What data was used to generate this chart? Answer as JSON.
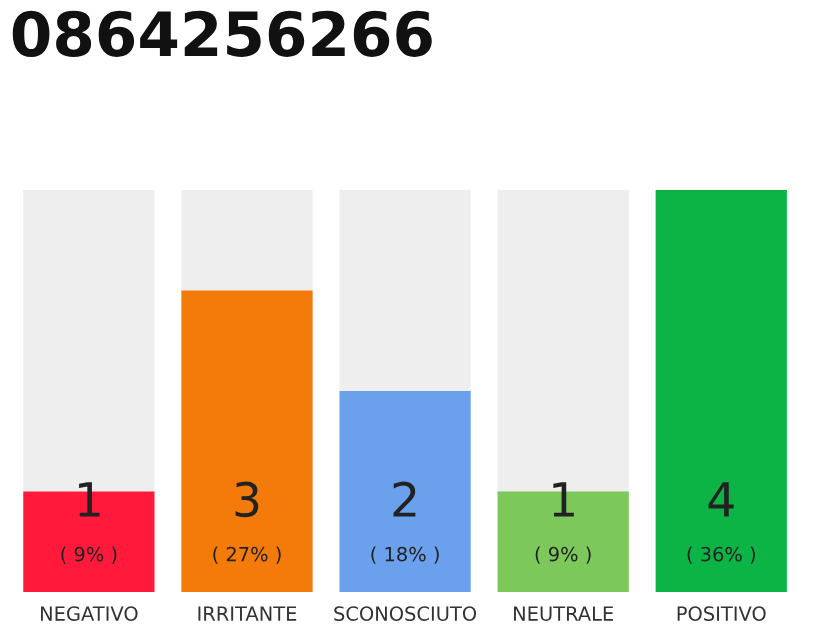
{
  "chart_data": {
    "type": "bar",
    "title": "0864256266",
    "categories": [
      "NEGATIVO",
      "IRRITANTE",
      "SCONOSCIUTO",
      "NEUTRALE",
      "POSITIVO"
    ],
    "values": [
      1,
      3,
      2,
      1,
      4
    ],
    "colors": [
      "#ff1a3c",
      "#f47b0a",
      "#6aa0ec",
      "#7cc85a",
      "#0cb446"
    ],
    "value_labels": [
      "1\n( 9% )",
      "3\n( 27% )",
      "2\n( 18% )",
      "1\n( 9% )",
      "4\n( 36% )"
    ],
    "ylim": [
      0,
      4
    ],
    "tick_labels": "x",
    "grid": false,
    "legend": false
  }
}
